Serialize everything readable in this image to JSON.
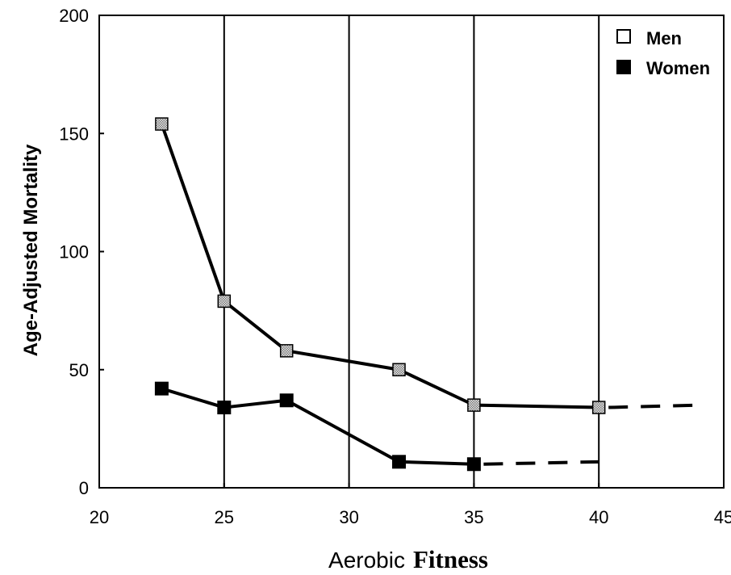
{
  "chart_data": {
    "type": "line",
    "xlabel_parts": [
      "Aerobic",
      "Fitness"
    ],
    "ylabel": "Age-Adjusted Mortality",
    "xlim": [
      20,
      45
    ],
    "ylim": [
      0,
      200
    ],
    "xticks": [
      "20",
      "25",
      "30",
      "35",
      "40",
      "45"
    ],
    "yticks": [
      "0",
      "50",
      "100",
      "150",
      "200"
    ],
    "vertical_gridlines_at": [
      25,
      30,
      35,
      40
    ],
    "legend_position": "top-right",
    "series": [
      {
        "name": "Men",
        "marker": "open-square",
        "points": [
          [
            22.5,
            154
          ],
          [
            25,
            79
          ],
          [
            27.5,
            58
          ],
          [
            32,
            50
          ],
          [
            35,
            35
          ],
          [
            40,
            34
          ]
        ],
        "dashed_extension": [
          [
            40,
            34
          ],
          [
            44,
            35
          ]
        ]
      },
      {
        "name": "Women",
        "marker": "filled-square",
        "points": [
          [
            22.5,
            42
          ],
          [
            25,
            34
          ],
          [
            27.5,
            37
          ],
          [
            32,
            11
          ],
          [
            35,
            10
          ]
        ],
        "dashed_extension": [
          [
            35,
            10
          ],
          [
            40,
            11
          ]
        ]
      }
    ]
  },
  "colors": {
    "men_marker_fill": "#bdbdbd",
    "women_marker_fill": "#000000",
    "line": "#000000"
  }
}
